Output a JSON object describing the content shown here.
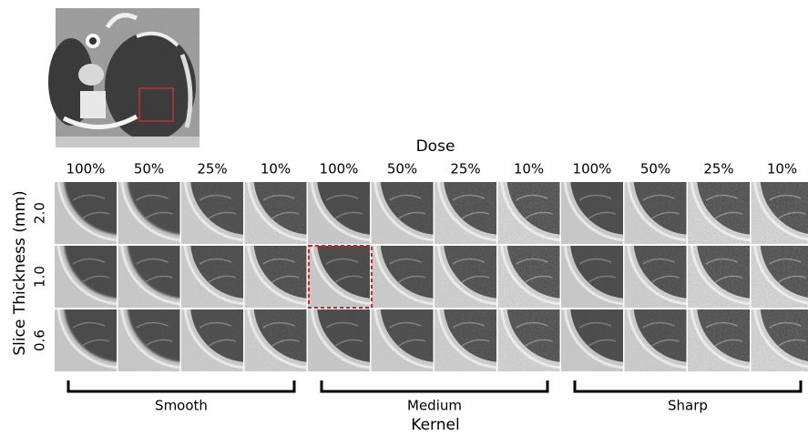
{
  "figure": {
    "dose_title": "Dose",
    "dose_labels": [
      "100%",
      "50%",
      "25%",
      "10%"
    ],
    "slice_title": "Slice Thickness (mm)",
    "slice_labels": [
      "2.0",
      "1.0",
      "0.6"
    ],
    "kernel_title": "Kernel",
    "kernels": [
      "Smooth",
      "Medium",
      "Sharp"
    ]
  }
}
